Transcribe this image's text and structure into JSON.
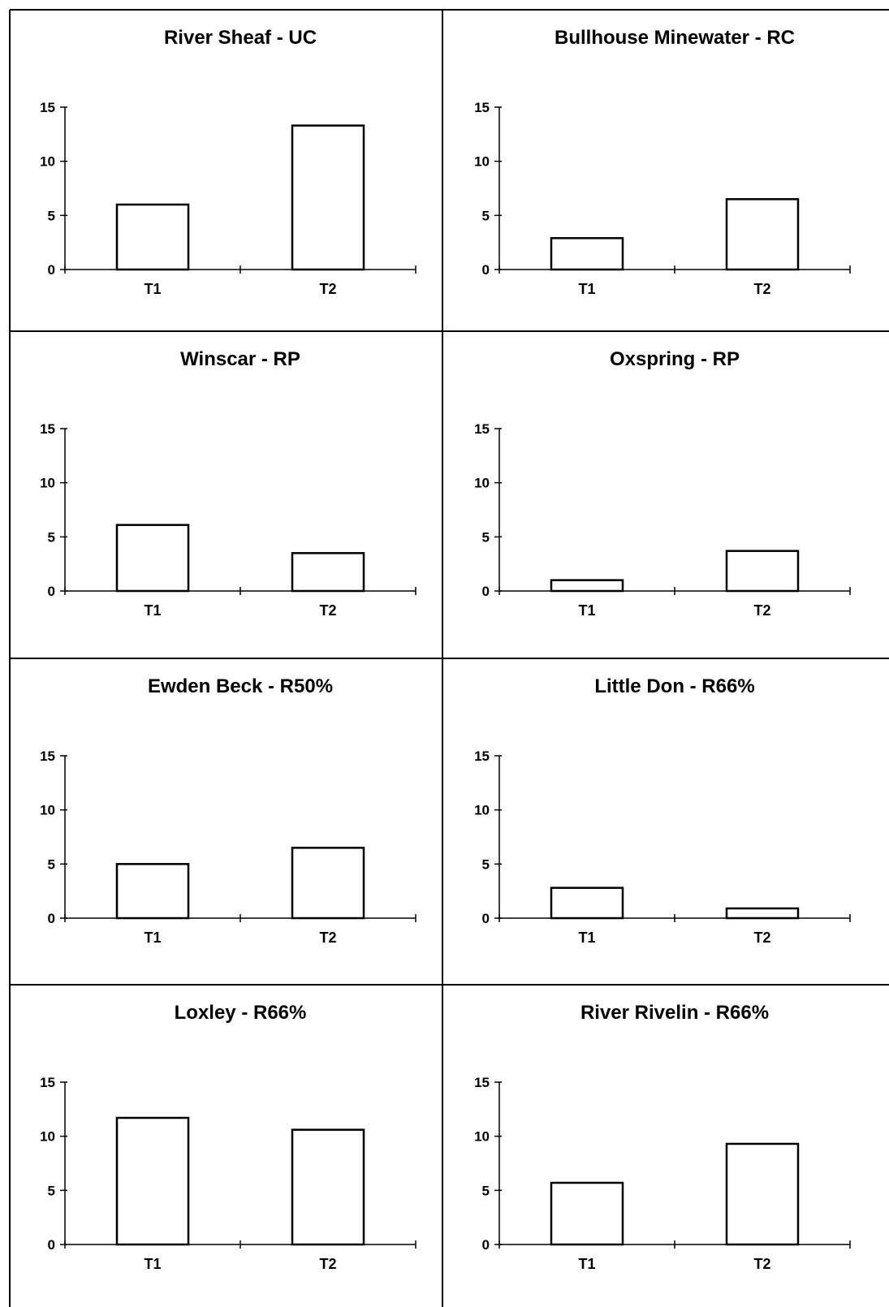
{
  "chart_data": [
    {
      "type": "bar",
      "title": "River Sheaf - UC",
      "categories": [
        "T1",
        "T2"
      ],
      "values": [
        6.0,
        13.3
      ],
      "ylim": [
        0,
        15
      ],
      "yticks": [
        0,
        5,
        10,
        15
      ]
    },
    {
      "type": "bar",
      "title": "Bullhouse Minewater - RC",
      "categories": [
        "T1",
        "T2"
      ],
      "values": [
        2.9,
        6.5
      ],
      "ylim": [
        0,
        15
      ],
      "yticks": [
        0,
        5,
        10,
        15
      ]
    },
    {
      "type": "bar",
      "title": "Winscar - RP",
      "categories": [
        "T1",
        "T2"
      ],
      "values": [
        6.1,
        3.5
      ],
      "ylim": [
        0,
        15
      ],
      "yticks": [
        0,
        5,
        10,
        15
      ]
    },
    {
      "type": "bar",
      "title": "Oxspring - RP",
      "categories": [
        "T1",
        "T2"
      ],
      "values": [
        1.0,
        3.7
      ],
      "ylim": [
        0,
        15
      ],
      "yticks": [
        0,
        5,
        10,
        15
      ]
    },
    {
      "type": "bar",
      "title": "Ewden Beck - R50%",
      "categories": [
        "T1",
        "T2"
      ],
      "values": [
        5.0,
        6.5
      ],
      "ylim": [
        0,
        15
      ],
      "yticks": [
        0,
        5,
        10,
        15
      ]
    },
    {
      "type": "bar",
      "title": "Little Don - R66%",
      "categories": [
        "T1",
        "T2"
      ],
      "values": [
        2.8,
        0.9
      ],
      "ylim": [
        0,
        15
      ],
      "yticks": [
        0,
        5,
        10,
        15
      ]
    },
    {
      "type": "bar",
      "title": "Loxley - R66%",
      "categories": [
        "T1",
        "T2"
      ],
      "values": [
        11.7,
        10.6
      ],
      "ylim": [
        0,
        15
      ],
      "yticks": [
        0,
        5,
        10,
        15
      ]
    },
    {
      "type": "bar",
      "title": "River Rivelin - R66%",
      "categories": [
        "T1",
        "T2"
      ],
      "values": [
        5.7,
        9.3
      ],
      "ylim": [
        0,
        15
      ],
      "yticks": [
        0,
        5,
        10,
        15
      ]
    }
  ]
}
